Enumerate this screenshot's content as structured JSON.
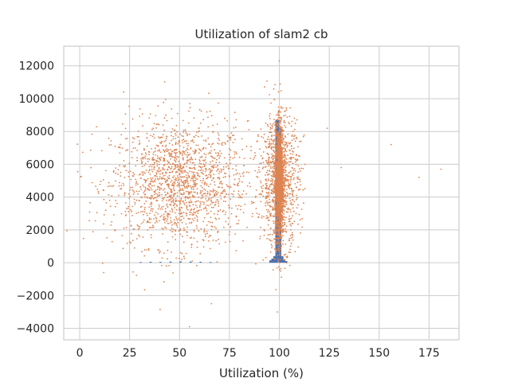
{
  "chart_data": {
    "type": "scatter",
    "title": "Utilization of slam2 cb",
    "xlabel": "Utilization (%)",
    "ylabel": "",
    "xlim": [
      -8,
      190
    ],
    "ylim": [
      -4700,
      13200
    ],
    "xticks": [
      0,
      25,
      50,
      75,
      100,
      125,
      150,
      175
    ],
    "yticks": [
      -4000,
      -2000,
      0,
      2000,
      4000,
      6000,
      8000,
      10000,
      12000
    ],
    "grid": true,
    "colors": {
      "scatter": "#dd8452",
      "histogram": "#4c72b0",
      "grid": "#cccccc",
      "axes_edge": "#cccccc"
    },
    "series": [
      {
        "kind": "histogram",
        "bin_width": 1,
        "bins": [
          {
            "x": 30,
            "y": 40
          },
          {
            "x": 35,
            "y": 60
          },
          {
            "x": 40,
            "y": 50
          },
          {
            "x": 45,
            "y": 70
          },
          {
            "x": 50,
            "y": 80
          },
          {
            "x": 55,
            "y": 70
          },
          {
            "x": 60,
            "y": 60
          },
          {
            "x": 65,
            "y": 40
          },
          {
            "x": 95,
            "y": 150
          },
          {
            "x": 96,
            "y": 250
          },
          {
            "x": 97,
            "y": 400
          },
          {
            "x": 98,
            "y": 8700
          },
          {
            "x": 99,
            "y": 8700
          },
          {
            "x": 100,
            "y": 8200
          },
          {
            "x": 101,
            "y": 400
          },
          {
            "x": 102,
            "y": 200
          },
          {
            "x": 103,
            "y": 100
          }
        ]
      },
      {
        "kind": "scatter",
        "clusters": [
          {
            "x_mean": 50,
            "x_sd": 17,
            "y_mean": 4800,
            "y_sd": 1900,
            "count": 1700
          },
          {
            "x_mean": 100,
            "x_sd": 1.1,
            "y_mean": 4800,
            "y_sd": 1700,
            "count": 1700
          },
          {
            "x_mean": 100,
            "x_sd": 5,
            "y_mean": 5000,
            "y_sd": 2000,
            "count": 900
          }
        ],
        "outliers": [
          {
            "x": 156,
            "y": 7200
          },
          {
            "x": 170,
            "y": 5200
          },
          {
            "x": 181,
            "y": 5700
          },
          {
            "x": 131,
            "y": 5800
          },
          {
            "x": 124,
            "y": 8200
          },
          {
            "x": 55,
            "y": -3900
          },
          {
            "x": 66,
            "y": -2500
          },
          {
            "x": 12,
            "y": -600
          },
          {
            "x": 22,
            "y": 10400
          },
          {
            "x": 100,
            "y": 12300
          },
          {
            "x": 99,
            "y": -3000
          }
        ]
      }
    ]
  }
}
